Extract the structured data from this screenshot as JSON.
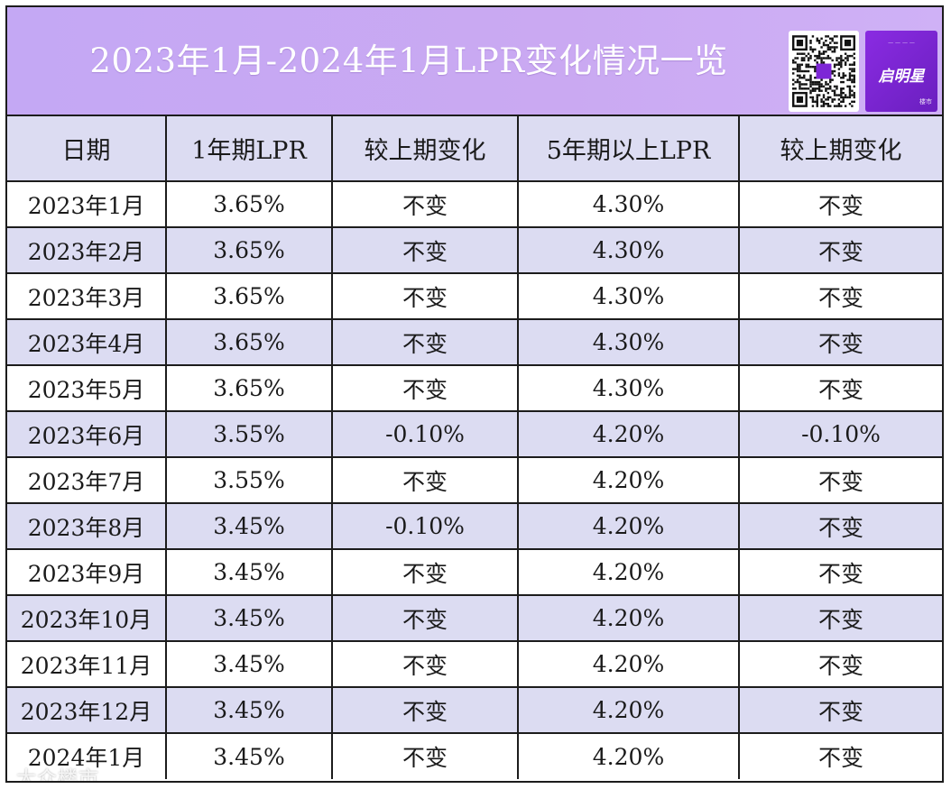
{
  "title": "2023年1月-2024年1月LPR变化情况一览",
  "colors": {
    "title_bar": "#c8aaf4",
    "title_text": "#ffffff",
    "row_shade": "#dcdcf2",
    "border": "#1c1c1c",
    "brand_bg": "#7d26d6"
  },
  "brand": {
    "name": "启明星",
    "sub": "楼市",
    "icon": "brand-logo"
  },
  "qr": {
    "icon": "qr-code"
  },
  "table": {
    "headers": [
      "日期",
      "1年期LPR",
      "较上期变化",
      "5年期以上LPR",
      "较上期变化"
    ],
    "rows": [
      [
        "2023年1月",
        "3.65%",
        "不变",
        "4.30%",
        "不变"
      ],
      [
        "2023年2月",
        "3.65%",
        "不变",
        "4.30%",
        "不变"
      ],
      [
        "2023年3月",
        "3.65%",
        "不变",
        "4.30%",
        "不变"
      ],
      [
        "2023年4月",
        "3.65%",
        "不变",
        "4.30%",
        "不变"
      ],
      [
        "2023年5月",
        "3.65%",
        "不变",
        "4.30%",
        "不变"
      ],
      [
        "2023年6月",
        "3.55%",
        "-0.10%",
        "4.20%",
        "-0.10%"
      ],
      [
        "2023年7月",
        "3.55%",
        "不变",
        "4.20%",
        "不变"
      ],
      [
        "2023年8月",
        "3.45%",
        "-0.10%",
        "4.20%",
        "不变"
      ],
      [
        "2023年9月",
        "3.45%",
        "不变",
        "4.20%",
        "不变"
      ],
      [
        "2023年10月",
        "3.45%",
        "不变",
        "4.20%",
        "不变"
      ],
      [
        "2023年11月",
        "3.45%",
        "不变",
        "4.20%",
        "不变"
      ],
      [
        "2023年12月",
        "3.45%",
        "不变",
        "4.20%",
        "不变"
      ],
      [
        "2024年1月",
        "3.45%",
        "不变",
        "4.20%",
        "不变"
      ]
    ]
  },
  "watermark": "大众楼市"
}
